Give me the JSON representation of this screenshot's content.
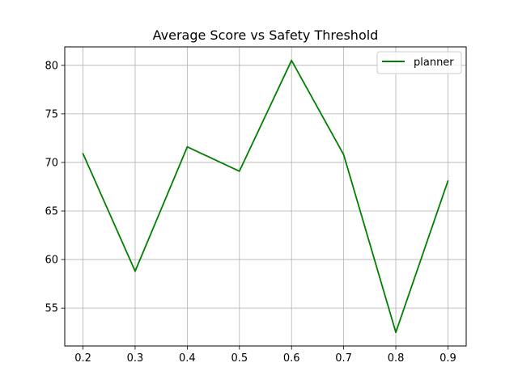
{
  "chart_data": {
    "type": "line",
    "title": "Average Score vs Safety Threshold",
    "xlabel": "",
    "ylabel": "",
    "x": [
      0.2,
      0.3,
      0.4,
      0.5,
      0.6,
      0.7,
      0.8,
      0.9
    ],
    "x_tick_labels": [
      "0.2",
      "0.3",
      "0.4",
      "0.5",
      "0.6",
      "0.7",
      "0.8",
      "0.9"
    ],
    "y_ticks": [
      55,
      60,
      65,
      70,
      75,
      80
    ],
    "xlim": [
      0.165,
      0.935
    ],
    "ylim": [
      51.1,
      81.9
    ],
    "grid": true,
    "legend_position": "upper right",
    "series": [
      {
        "name": "planner",
        "color": "#008000",
        "values": [
          70.9,
          58.8,
          71.6,
          69.1,
          80.5,
          70.8,
          52.5,
          68.1
        ]
      }
    ]
  }
}
